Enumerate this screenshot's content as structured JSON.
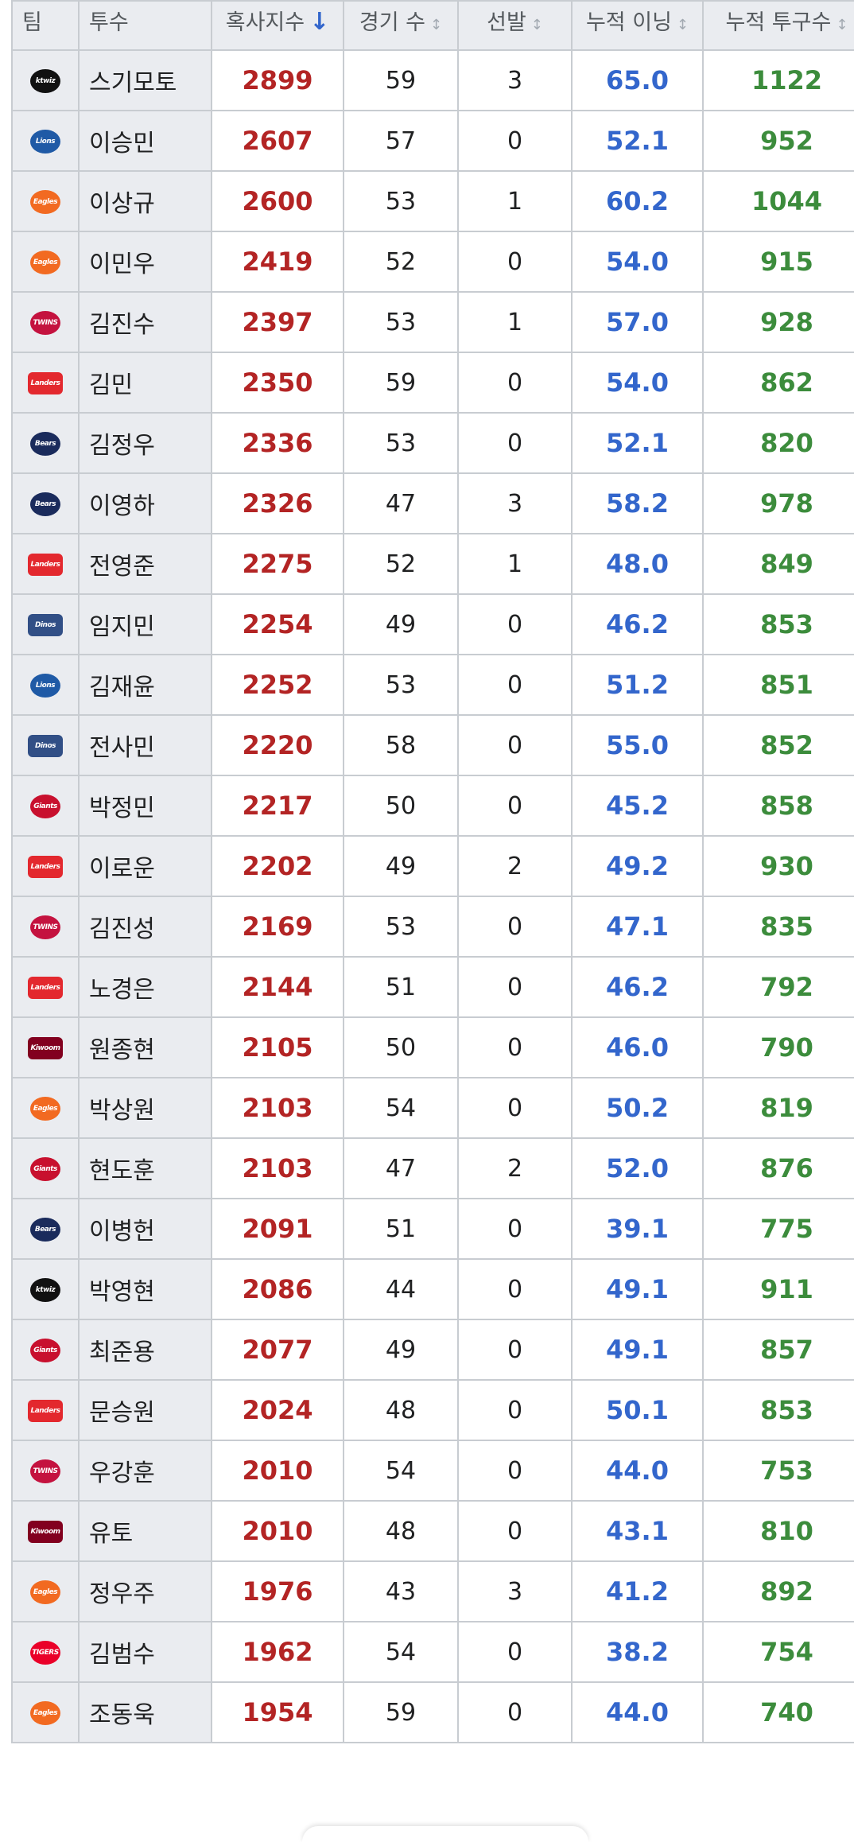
{
  "table": {
    "headers": {
      "team": "팀",
      "pitcher": "투수",
      "fire_index": "혹사지수",
      "games": "경기 수",
      "starts": "선발",
      "innings": "누적 이닝",
      "pitches": "누적 투구수"
    },
    "sort_icons": {
      "active": "↓",
      "inactive": "↕"
    },
    "team_logo_colors": {
      "ktwiz": "#111111",
      "Lions": "#1f5aa6",
      "Eagles": "#f26a21",
      "TWINS": "#c4123f",
      "Landers": "#e3282e",
      "Bears": "#1a2b5c",
      "Dinos": "#314f86",
      "Giants": "#c8102e",
      "Kiwoom": "#82001f",
      "TIGERS": "#ea0029"
    },
    "rows": [
      {
        "team": "ktwiz",
        "name": "스기모토",
        "fire": "2899",
        "games": "59",
        "starts": "3",
        "innings": "65.0",
        "pitches": "1122"
      },
      {
        "team": "Lions",
        "name": "이승민",
        "fire": "2607",
        "games": "57",
        "starts": "0",
        "innings": "52.1",
        "pitches": "952"
      },
      {
        "team": "Eagles",
        "name": "이상규",
        "fire": "2600",
        "games": "53",
        "starts": "1",
        "innings": "60.2",
        "pitches": "1044"
      },
      {
        "team": "Eagles",
        "name": "이민우",
        "fire": "2419",
        "games": "52",
        "starts": "0",
        "innings": "54.0",
        "pitches": "915"
      },
      {
        "team": "TWINS",
        "name": "김진수",
        "fire": "2397",
        "games": "53",
        "starts": "1",
        "innings": "57.0",
        "pitches": "928"
      },
      {
        "team": "Landers",
        "name": "김민",
        "fire": "2350",
        "games": "59",
        "starts": "0",
        "innings": "54.0",
        "pitches": "862"
      },
      {
        "team": "Bears",
        "name": "김정우",
        "fire": "2336",
        "games": "53",
        "starts": "0",
        "innings": "52.1",
        "pitches": "820"
      },
      {
        "team": "Bears",
        "name": "이영하",
        "fire": "2326",
        "games": "47",
        "starts": "3",
        "innings": "58.2",
        "pitches": "978"
      },
      {
        "team": "Landers",
        "name": "전영준",
        "fire": "2275",
        "games": "52",
        "starts": "1",
        "innings": "48.0",
        "pitches": "849"
      },
      {
        "team": "Dinos",
        "name": "임지민",
        "fire": "2254",
        "games": "49",
        "starts": "0",
        "innings": "46.2",
        "pitches": "853"
      },
      {
        "team": "Lions",
        "name": "김재윤",
        "fire": "2252",
        "games": "53",
        "starts": "0",
        "innings": "51.2",
        "pitches": "851"
      },
      {
        "team": "Dinos",
        "name": "전사민",
        "fire": "2220",
        "games": "58",
        "starts": "0",
        "innings": "55.0",
        "pitches": "852"
      },
      {
        "team": "Giants",
        "name": "박정민",
        "fire": "2217",
        "games": "50",
        "starts": "0",
        "innings": "45.2",
        "pitches": "858"
      },
      {
        "team": "Landers",
        "name": "이로운",
        "fire": "2202",
        "games": "49",
        "starts": "2",
        "innings": "49.2",
        "pitches": "930"
      },
      {
        "team": "TWINS",
        "name": "김진성",
        "fire": "2169",
        "games": "53",
        "starts": "0",
        "innings": "47.1",
        "pitches": "835"
      },
      {
        "team": "Landers",
        "name": "노경은",
        "fire": "2144",
        "games": "51",
        "starts": "0",
        "innings": "46.2",
        "pitches": "792"
      },
      {
        "team": "Kiwoom",
        "name": "원종현",
        "fire": "2105",
        "games": "50",
        "starts": "0",
        "innings": "46.0",
        "pitches": "790"
      },
      {
        "team": "Eagles",
        "name": "박상원",
        "fire": "2103",
        "games": "54",
        "starts": "0",
        "innings": "50.2",
        "pitches": "819"
      },
      {
        "team": "Giants",
        "name": "현도훈",
        "fire": "2103",
        "games": "47",
        "starts": "2",
        "innings": "52.0",
        "pitches": "876"
      },
      {
        "team": "Bears",
        "name": "이병헌",
        "fire": "2091",
        "games": "51",
        "starts": "0",
        "innings": "39.1",
        "pitches": "775"
      },
      {
        "team": "ktwiz",
        "name": "박영현",
        "fire": "2086",
        "games": "44",
        "starts": "0",
        "innings": "49.1",
        "pitches": "911"
      },
      {
        "team": "Giants",
        "name": "최준용",
        "fire": "2077",
        "games": "49",
        "starts": "0",
        "innings": "49.1",
        "pitches": "857"
      },
      {
        "team": "Landers",
        "name": "문승원",
        "fire": "2024",
        "games": "48",
        "starts": "0",
        "innings": "50.1",
        "pitches": "853"
      },
      {
        "team": "TWINS",
        "name": "우강훈",
        "fire": "2010",
        "games": "54",
        "starts": "0",
        "innings": "44.0",
        "pitches": "753"
      },
      {
        "team": "Kiwoom",
        "name": "유토",
        "fire": "2010",
        "games": "48",
        "starts": "0",
        "innings": "43.1",
        "pitches": "810"
      },
      {
        "team": "Eagles",
        "name": "정우주",
        "fire": "1976",
        "games": "43",
        "starts": "3",
        "innings": "41.2",
        "pitches": "892"
      },
      {
        "team": "TIGERS",
        "name": "김범수",
        "fire": "1962",
        "games": "54",
        "starts": "0",
        "innings": "38.2",
        "pitches": "754"
      },
      {
        "team": "Eagles",
        "name": "조동욱",
        "fire": "1954",
        "games": "59",
        "starts": "0",
        "innings": "44.0",
        "pitches": "740"
      }
    ]
  }
}
